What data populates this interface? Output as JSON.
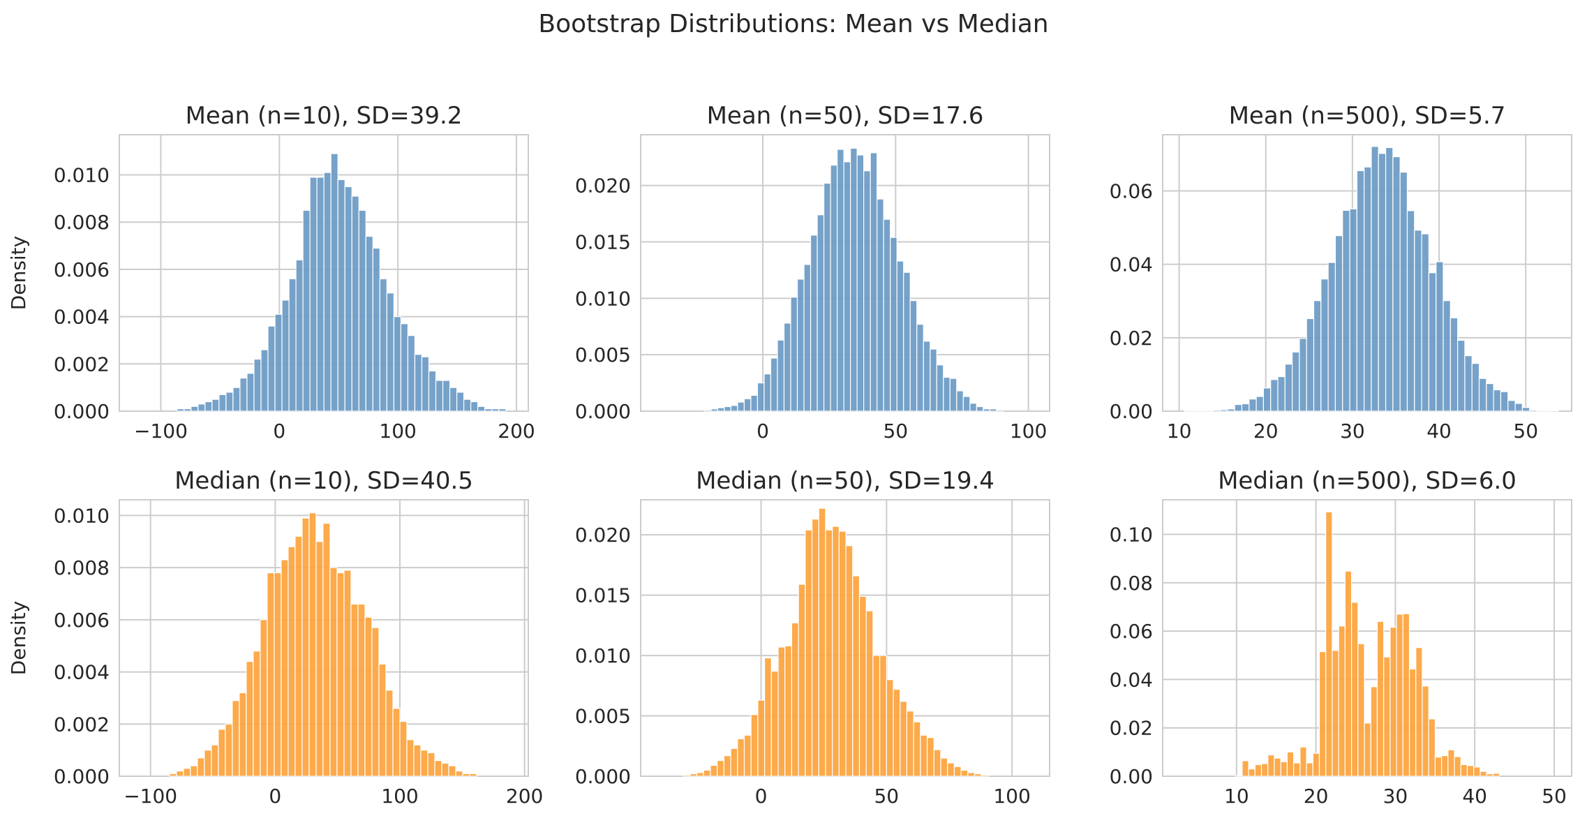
{
  "figure": {
    "suptitle": "Bootstrap Distributions: Mean vs Median",
    "colors": {
      "mean": "#6a9ac4",
      "median": "#fca33c",
      "grid": "#cccccc",
      "text": "#262626"
    }
  },
  "chart_data": [
    {
      "type": "bar",
      "id": "mean-10",
      "title": "Mean (n=10), SD=39.2",
      "ylabel": "Density",
      "xlabel": "",
      "color_key": "mean",
      "xlim": [
        -135,
        210
      ],
      "ylim": [
        0,
        0.0117
      ],
      "xticks": [
        -100,
        0,
        100,
        200
      ],
      "xtick_labels": [
        "−100",
        "0",
        "100",
        "200"
      ],
      "yticks": [
        0,
        0.002,
        0.004,
        0.006,
        0.008,
        0.01
      ],
      "ytick_labels": [
        "0.000",
        "0.002",
        "0.004",
        "0.006",
        "0.008",
        "0.010"
      ],
      "bin_start": -104,
      "bin_width": 5.9,
      "values": [
        0.0,
        0.0,
        0.0,
        0.0001,
        0.0001,
        0.0002,
        0.0003,
        0.0004,
        0.0005,
        0.0007,
        0.0008,
        0.001,
        0.0014,
        0.0016,
        0.0022,
        0.0026,
        0.0036,
        0.0041,
        0.0047,
        0.0056,
        0.0064,
        0.0085,
        0.0099,
        0.0099,
        0.0101,
        0.0109,
        0.0098,
        0.0095,
        0.0091,
        0.0085,
        0.0074,
        0.0069,
        0.0056,
        0.005,
        0.004,
        0.0037,
        0.0032,
        0.0024,
        0.0023,
        0.0017,
        0.0013,
        0.0013,
        0.001,
        0.0008,
        0.0005,
        0.0004,
        0.0002,
        0.0001,
        0.0001,
        0.0001,
        0.0,
        0.0,
        0.0,
        0.0
      ]
    },
    {
      "type": "bar",
      "id": "mean-50",
      "title": "Mean (n=50), SD=17.6",
      "ylabel": "",
      "xlabel": "",
      "color_key": "mean",
      "xlim": [
        -46,
        108
      ],
      "ylim": [
        0,
        0.0245
      ],
      "xticks": [
        0,
        50,
        100
      ],
      "xtick_labels": [
        "0",
        "50",
        "100"
      ],
      "yticks": [
        0,
        0.005,
        0.01,
        0.015,
        0.02
      ],
      "ytick_labels": [
        "0.000",
        "0.005",
        "0.010",
        "0.015",
        "0.020"
      ],
      "bin_start": -22,
      "bin_width": 2.5,
      "values": [
        0.0001,
        0.0002,
        0.0003,
        0.0004,
        0.0005,
        0.0008,
        0.0011,
        0.0014,
        0.0025,
        0.0033,
        0.0047,
        0.0063,
        0.0078,
        0.0101,
        0.0117,
        0.013,
        0.0156,
        0.0174,
        0.0202,
        0.0218,
        0.0232,
        0.0221,
        0.0233,
        0.0227,
        0.0213,
        0.0229,
        0.0188,
        0.017,
        0.0154,
        0.0133,
        0.0123,
        0.0098,
        0.0077,
        0.0062,
        0.0055,
        0.0041,
        0.003,
        0.0029,
        0.0018,
        0.0013,
        0.0007,
        0.0004,
        0.0002,
        0.0002,
        0.0001,
        0.0,
        0.0,
        0.0,
        0.0
      ]
    },
    {
      "type": "bar",
      "id": "mean-500",
      "title": "Mean (n=500), SD=5.7",
      "ylabel": "",
      "xlabel": "",
      "color_key": "mean",
      "xlim": [
        8.1,
        55.3
      ],
      "ylim": [
        0,
        0.0753
      ],
      "xticks": [
        10,
        20,
        30,
        40,
        50
      ],
      "xtick_labels": [
        "10",
        "20",
        "30",
        "40",
        "50"
      ],
      "yticks": [
        0,
        0.02,
        0.04,
        0.06
      ],
      "ytick_labels": [
        "0.00",
        "0.02",
        "0.04",
        "0.06"
      ],
      "bin_start": 10.6,
      "bin_width": 0.83,
      "values": [
        0.0001,
        0.0001,
        0.0001,
        0.0002,
        0.0003,
        0.0004,
        0.0006,
        0.0018,
        0.002,
        0.0033,
        0.004,
        0.0063,
        0.0086,
        0.0094,
        0.0128,
        0.0161,
        0.0198,
        0.0252,
        0.0301,
        0.036,
        0.0405,
        0.0478,
        0.0547,
        0.0551,
        0.0655,
        0.0665,
        0.0721,
        0.0702,
        0.0718,
        0.0693,
        0.0651,
        0.0546,
        0.0493,
        0.0483,
        0.0377,
        0.0407,
        0.0301,
        0.0254,
        0.0193,
        0.0151,
        0.013,
        0.0089,
        0.0075,
        0.0058,
        0.0053,
        0.0029,
        0.0021,
        0.001,
        0.0003,
        0.0002,
        0.0001,
        0.0001,
        0.0,
        0.0
      ]
    },
    {
      "type": "bar",
      "id": "median-10",
      "title": "Median (n=10), SD=40.5",
      "ylabel": "Density",
      "xlabel": "",
      "color_key": "median",
      "xlim": [
        -125,
        203
      ],
      "ylim": [
        0,
        0.0106
      ],
      "xticks": [
        -100,
        0,
        100,
        200
      ],
      "xtick_labels": [
        "−100",
        "0",
        "100",
        "200"
      ],
      "bin_start": -96,
      "bin_width": 5.6,
      "yticks": [
        0,
        0.002,
        0.004,
        0.006,
        0.008,
        0.01
      ],
      "ytick_labels": [
        "0.000",
        "0.002",
        "0.004",
        "0.006",
        "0.008",
        "0.010"
      ],
      "values": [
        0.0,
        0.0,
        0.0001,
        0.0002,
        0.0003,
        0.0004,
        0.0007,
        0.001,
        0.0012,
        0.0018,
        0.002,
        0.0029,
        0.0032,
        0.0044,
        0.0048,
        0.006,
        0.0078,
        0.0078,
        0.0083,
        0.0088,
        0.0092,
        0.0099,
        0.0101,
        0.009,
        0.0097,
        0.008,
        0.0078,
        0.0079,
        0.0066,
        0.0066,
        0.0061,
        0.0057,
        0.0043,
        0.0033,
        0.0026,
        0.0021,
        0.0014,
        0.0012,
        0.001,
        0.0009,
        0.0006,
        0.0005,
        0.0004,
        0.0002,
        0.0001,
        0.0001,
        0.0,
        0.0,
        0.0,
        0.0,
        0.0,
        0.0,
        0.0,
        0.0
      ]
    },
    {
      "type": "bar",
      "id": "median-50",
      "title": "Median (n=50), SD=19.4",
      "ylabel": "",
      "xlabel": "",
      "color_key": "median",
      "xlim": [
        -48,
        115
      ],
      "ylim": [
        0,
        0.0229
      ],
      "xticks": [
        0,
        50,
        100
      ],
      "xtick_labels": [
        "0",
        "50",
        "100"
      ],
      "yticks": [
        0,
        0.005,
        0.01,
        0.015,
        0.02
      ],
      "ytick_labels": [
        "0.000",
        "0.005",
        "0.010",
        "0.015",
        "0.020"
      ],
      "bin_start": -31,
      "bin_width": 2.7,
      "values": [
        0.0001,
        0.0002,
        0.0003,
        0.0005,
        0.0009,
        0.0013,
        0.0017,
        0.0023,
        0.0031,
        0.0034,
        0.0051,
        0.0063,
        0.0098,
        0.0087,
        0.0107,
        0.0108,
        0.0127,
        0.0159,
        0.0204,
        0.0213,
        0.0222,
        0.0204,
        0.0207,
        0.0203,
        0.0191,
        0.0166,
        0.0149,
        0.0137,
        0.01,
        0.01,
        0.008,
        0.0072,
        0.0062,
        0.0054,
        0.0045,
        0.0034,
        0.0032,
        0.0022,
        0.0015,
        0.0011,
        0.0008,
        0.0005,
        0.0003,
        0.0002,
        0.0001,
        0.0
      ]
    },
    {
      "type": "bar",
      "id": "median-500",
      "title": "Median (n=500), SD=6.0",
      "ylabel": "",
      "xlabel": "",
      "color_key": "median",
      "xlim": [
        0.7,
        52.2
      ],
      "ylim": [
        0,
        0.1143
      ],
      "xticks": [
        10,
        20,
        30,
        40,
        50
      ],
      "xtick_labels": [
        "10",
        "20",
        "30",
        "40",
        "50"
      ],
      "yticks": [
        0,
        0.02,
        0.04,
        0.06,
        0.08,
        0.1
      ],
      "ytick_labels": [
        "0.00",
        "0.02",
        "0.04",
        "0.06",
        "0.08",
        "0.10"
      ],
      "bin_start": 9.9,
      "bin_width": 0.81,
      "values": [
        0.0002,
        0.0064,
        0.003,
        0.0048,
        0.0052,
        0.0088,
        0.0075,
        0.006,
        0.01,
        0.0055,
        0.0121,
        0.0055,
        0.0095,
        0.0515,
        0.1093,
        0.052,
        0.0621,
        0.0848,
        0.0719,
        0.0548,
        0.022,
        0.037,
        0.064,
        0.0493,
        0.0616,
        0.067,
        0.0672,
        0.0443,
        0.0532,
        0.0373,
        0.0237,
        0.0079,
        0.0085,
        0.0109,
        0.0081,
        0.0048,
        0.0044,
        0.0038,
        0.002,
        0.001,
        0.0012,
        0.0,
        0.0,
        0.0,
        0.0,
        0.0,
        0.0,
        0.0,
        0.0
      ]
    }
  ]
}
